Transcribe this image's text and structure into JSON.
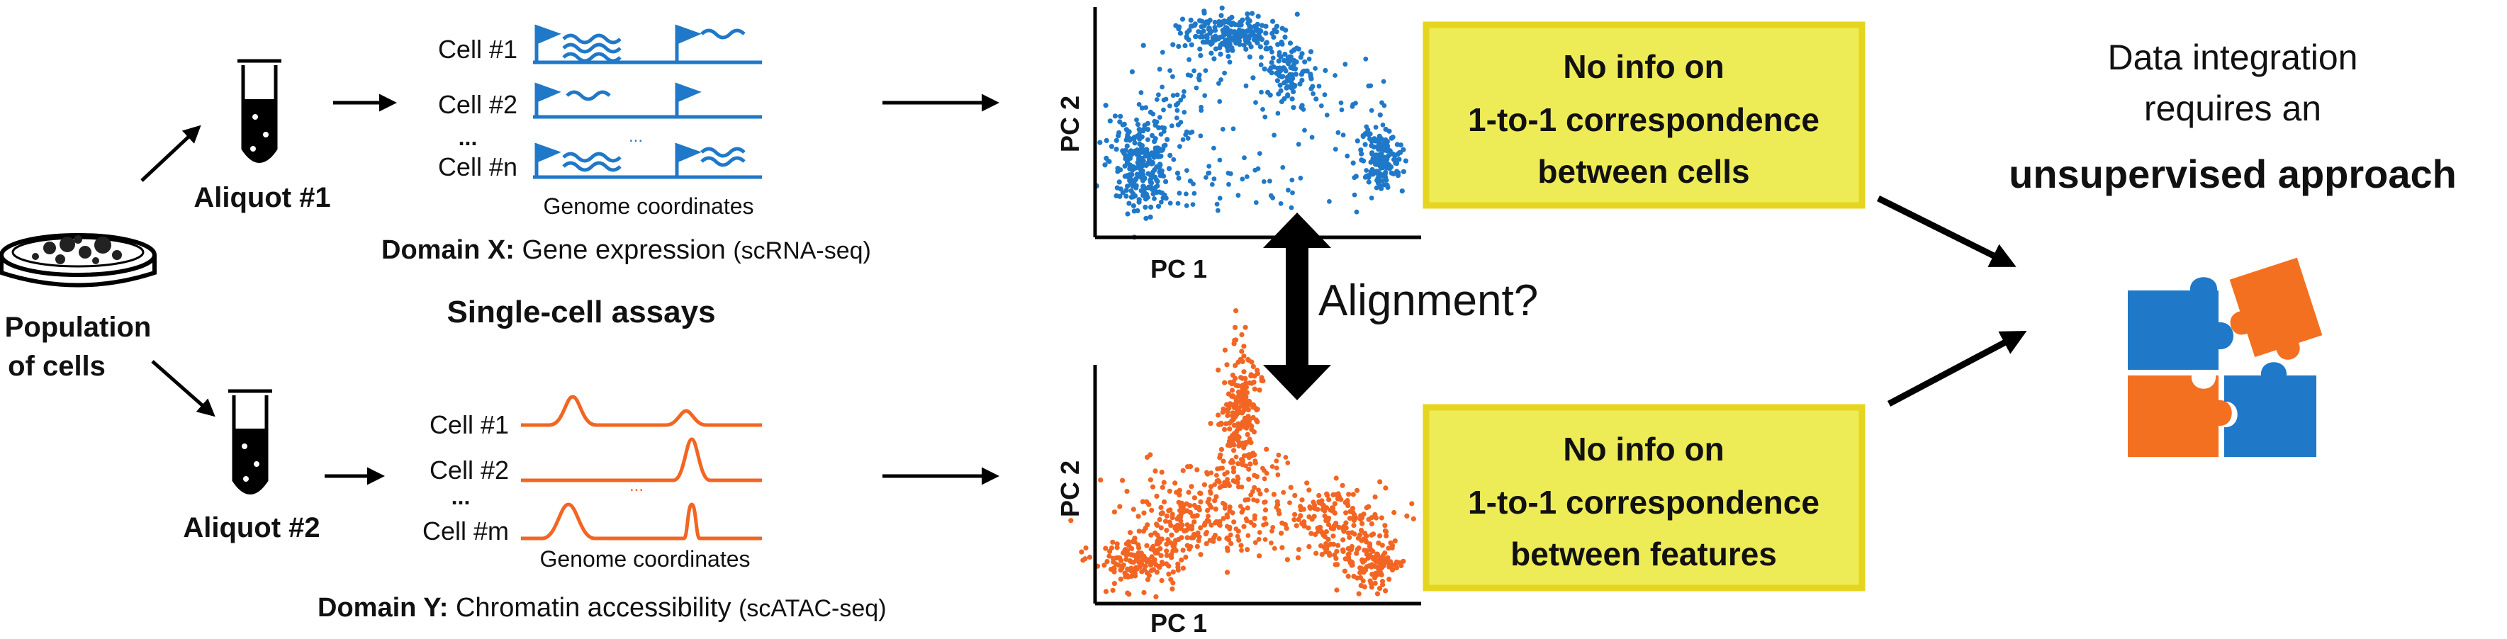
{
  "population": {
    "line1": "Population",
    "line2": "of cells"
  },
  "aliquot_x": "Aliquot #1",
  "aliquot_y": "Aliquot #2",
  "assay_caption": "Single-cell assays",
  "rna": {
    "rows": [
      "Cell #1",
      "Cell #2",
      "...",
      "Cell #n"
    ],
    "ellipsis": "...",
    "axis_label": "Genome coordinates",
    "domain_prefix": "Domain X:",
    "domain_text": " Gene expression ",
    "domain_method": "(scRNA-seq)"
  },
  "atac": {
    "rows": [
      "Cell #1",
      "Cell #2",
      "...",
      "Cell #m"
    ],
    "ellipsis": "...",
    "axis_label": "Genome coordinates",
    "domain_prefix": "Domain Y:",
    "domain_text": "  Chromatin accessibility ",
    "domain_method": "(scATAC-seq)"
  },
  "plot_x": {
    "xlabel": "PC 1",
    "ylabel": "PC 2"
  },
  "plot_y": {
    "xlabel": "PC 1",
    "ylabel": "PC 2"
  },
  "alignment_label": "Alignment?",
  "box_cells": {
    "line1": "No info on",
    "line2": "1-to-1 correspondence",
    "line3": "between cells"
  },
  "box_features": {
    "line1": "No info on",
    "line2": "1-to-1 correspondence",
    "line3": "between features"
  },
  "integration": {
    "line1": "Data integration",
    "line2": "requires an",
    "line3": "unsupervised approach"
  },
  "colors": {
    "rna_blue": "#1f78c8",
    "atac_orange": "#f26522",
    "box_fill": "#eeec56",
    "box_border": "#e6d51f",
    "puzzle_blue": "#1f78c8",
    "puzzle_orange": "#f37021"
  }
}
